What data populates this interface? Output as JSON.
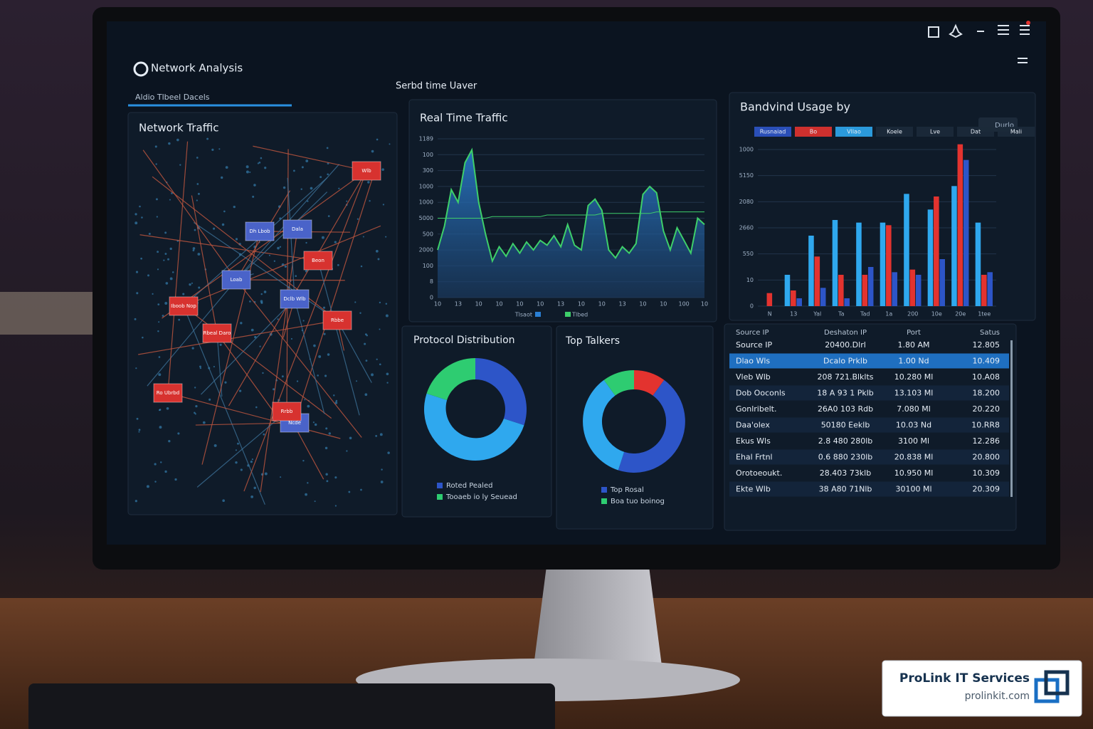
{
  "app": {
    "title": "Network Analysis",
    "tab": "Aldio Tlbeel Dacels",
    "subtitle": "Serbd time Uaver"
  },
  "network": {
    "title": "Network Traffic",
    "nodes": [
      {
        "label": "Rbeal Daro",
        "color": "#d7322f"
      },
      {
        "label": "Dclb Wlb",
        "color": "#4a63c9"
      },
      {
        "label": "Iboob Nop",
        "color": "#d7322f"
      },
      {
        "label": "Ro Ubrbd",
        "color": "#d7322f"
      },
      {
        "label": "Beon",
        "color": "#d7322f"
      },
      {
        "label": "Rbbe",
        "color": "#d7322f"
      },
      {
        "label": "Dh Lbob",
        "color": "#4a63c9"
      },
      {
        "label": "Ncde",
        "color": "#4a63c9"
      },
      {
        "label": "Dala",
        "color": "#4a63c9"
      },
      {
        "label": "Rrbb",
        "color": "#d7322f"
      },
      {
        "label": "Loab",
        "color": "#4a63c9"
      },
      {
        "label": "Wlb",
        "color": "#d7322f"
      }
    ]
  },
  "traffic": {
    "type": "line",
    "title": "Real Time Traffic",
    "categories": [
      "10",
      null,
      null,
      "13",
      null,
      null,
      "10",
      null,
      null,
      "10",
      null,
      null,
      "10",
      null,
      null,
      "10",
      null,
      null,
      "13",
      null,
      null,
      "10",
      null,
      null,
      "10",
      null,
      null,
      "13",
      null,
      null,
      "10",
      null,
      null,
      "10",
      null,
      null,
      "100",
      null,
      null,
      "10"
    ],
    "series": [
      {
        "name": "Tlsaot",
        "color": "#2a7fd4",
        "values": [
          3.0,
          4.5,
          6.8,
          6.0,
          8.5,
          9.3,
          6.0,
          4.0,
          2.3,
          3.2,
          2.6,
          3.4,
          2.8,
          3.5,
          3.0,
          3.6,
          3.3,
          3.9,
          3.2,
          4.6,
          3.3,
          3.0,
          5.8,
          6.2,
          5.5,
          3.0,
          2.5,
          3.2,
          2.8,
          3.4,
          6.5,
          7.0,
          6.6,
          4.2,
          3.0,
          4.4,
          3.6,
          2.8,
          5.0,
          4.6
        ]
      },
      {
        "name": "Tlbed",
        "color": "#3ecf6a",
        "values": [
          5.0,
          5.0,
          5.0,
          5.0,
          5.0,
          5.0,
          5.0,
          5.0,
          5.1,
          5.1,
          5.1,
          5.1,
          5.1,
          5.1,
          5.1,
          5.1,
          5.2,
          5.2,
          5.2,
          5.2,
          5.2,
          5.2,
          5.2,
          5.2,
          5.3,
          5.3,
          5.3,
          5.3,
          5.3,
          5.3,
          5.3,
          5.3,
          5.4,
          5.4,
          5.4,
          5.4,
          5.4,
          5.4,
          5.4,
          5.4
        ]
      }
    ],
    "ylim": [
      0,
      10
    ],
    "yticks": [
      0,
      {
        "value": 1,
        "label": "8"
      },
      {
        "value": 2,
        "label": "100"
      },
      {
        "value": 3,
        "label": "2000"
      },
      {
        "value": 4,
        "label": "500"
      },
      {
        "value": 5,
        "label": "5000"
      },
      {
        "value": 6,
        "label": "1000"
      },
      {
        "value": 7,
        "label": "1000"
      },
      {
        "value": 8,
        "label": "300"
      },
      {
        "value": 9,
        "label": "100"
      },
      {
        "value": 10,
        "label": "1189"
      }
    ],
    "grid": true
  },
  "bandwidth": {
    "type": "bar",
    "title": "Bandvind Usage by",
    "button": "Durlo",
    "legend_extra": [
      "Koele",
      "Lve",
      "Dat",
      "Mali"
    ],
    "categories": [
      "N",
      "13",
      "Yal",
      "Ta",
      "Tad",
      "1a",
      "200",
      "10e",
      "20e",
      "1tee"
    ],
    "series": [
      {
        "name": "Vllao",
        "color": "#2fa8ee",
        "values": [
          0,
          1.2,
          2.7,
          3.3,
          3.2,
          3.2,
          4.3,
          3.7,
          4.6,
          3.2
        ]
      },
      {
        "name": "Bo",
        "color": "#e3332f",
        "values": [
          0.5,
          0.6,
          1.9,
          1.2,
          1.2,
          3.1,
          1.4,
          4.2,
          6.2,
          1.2
        ]
      },
      {
        "name": "Rusnaiad",
        "color": "#2d55c8",
        "values": [
          0,
          0.3,
          0.7,
          0.3,
          1.5,
          1.3,
          1.2,
          1.8,
          5.6,
          1.3
        ]
      }
    ],
    "ylim": [
      0,
      6
    ],
    "yticks": [
      0,
      {
        "value": 1,
        "label": "10"
      },
      {
        "value": 2,
        "label": "550"
      },
      {
        "value": 3,
        "label": "2660"
      },
      {
        "value": 4,
        "label": "2080"
      },
      {
        "value": 5,
        "label": "5150"
      },
      {
        "value": 6,
        "label": "1000"
      }
    ],
    "grid": true
  },
  "protocol": {
    "type": "pie",
    "title": "Protocol Distribution",
    "categories": [
      "Roted Pealed",
      "Tooaeb io ly Seuead",
      null
    ],
    "values": [
      30,
      50,
      20
    ],
    "colors": [
      "#2d55c8",
      "#2fa8ee",
      "#2ecc71"
    ],
    "legend_colors": [
      "#2d55c8",
      "#2ecc71"
    ]
  },
  "talkers": {
    "type": "pie",
    "title": "Top Talkers",
    "categories": [
      "Top Rosal",
      "Boa tuo boinog",
      null,
      null
    ],
    "values": [
      10,
      45,
      35,
      10
    ],
    "colors": [
      "#e3332f",
      "#2d55c8",
      "#2fa8ee",
      "#2ecc71"
    ],
    "legend_colors": [
      "#2d55c8",
      "#2ecc71"
    ]
  },
  "table": {
    "columns": [
      "Source IP",
      "Deshaton IP",
      "Port",
      "Satus"
    ],
    "selected_row": 1,
    "rows": [
      [
        "Source IP",
        "20400.Dlrl",
        "1.80 AM",
        "12.805"
      ],
      [
        "Dlao Wls",
        "Dcalo Prklb",
        "1.00 Nd",
        "10.409"
      ],
      [
        "Vleb Wlb",
        "208 721.Blklts",
        "10.280 Ml",
        "10.A08"
      ],
      [
        "Dob Ooconls",
        "18 A 93 1 Pklb",
        "13.103 Ml",
        "18.200"
      ],
      [
        "Gonlribelt.",
        "26A0 103 Rdb",
        "7.080 Ml",
        "20.220"
      ],
      [
        "Daa'olex",
        "50180 Eeklb",
        "10.03 Nd",
        "10.RR8"
      ],
      [
        "Ekus Wls",
        "2.8 480 280lb",
        "3100 Ml",
        "12.286"
      ],
      [
        "Ehal Frtnl",
        "0.6 880 230lb",
        "20.838 Ml",
        "20.800"
      ],
      [
        "Orotoeoukt.",
        "28.403 73klb",
        "10.950 Ml",
        "10.309"
      ],
      [
        "Ekte Wlb",
        "38 A80 71Nlb",
        "30100 Ml",
        "20.309"
      ]
    ]
  },
  "badge": {
    "name": "ProLink IT Services",
    "url": "prolinkit.com"
  }
}
